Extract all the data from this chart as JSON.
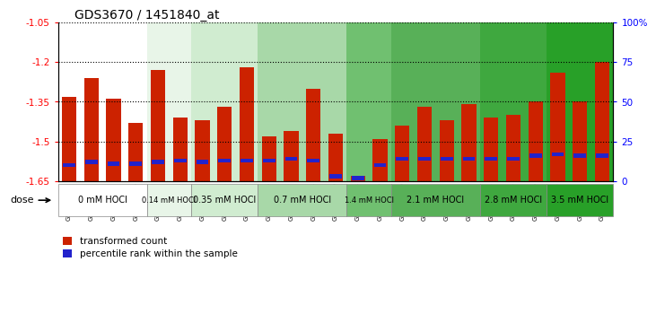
{
  "title": "GDS3670 / 1451840_at",
  "samples": [
    "GSM387601",
    "GSM387602",
    "GSM387605",
    "GSM387606",
    "GSM387645",
    "GSM387646",
    "GSM387647",
    "GSM387648",
    "GSM387649",
    "GSM387676",
    "GSM387677",
    "GSM387678",
    "GSM387679",
    "GSM387698",
    "GSM387699",
    "GSM387700",
    "GSM387701",
    "GSM387702",
    "GSM387703",
    "GSM387713",
    "GSM387714",
    "GSM387716",
    "GSM387750",
    "GSM387751",
    "GSM387752"
  ],
  "values": [
    -1.33,
    -1.26,
    -1.34,
    -1.43,
    -1.23,
    -1.41,
    -1.42,
    -1.37,
    -1.22,
    -1.48,
    -1.46,
    -1.3,
    -1.47,
    -1.63,
    -1.49,
    -1.44,
    -1.37,
    -1.42,
    -1.36,
    -1.41,
    -1.4,
    -1.35,
    -1.24,
    -1.35,
    -1.2
  ],
  "percentiles": [
    10,
    12,
    11,
    11,
    12,
    13,
    12,
    13,
    13,
    13,
    14,
    13,
    3,
    2,
    10,
    14,
    14,
    14,
    14,
    14,
    14,
    16,
    17,
    16,
    16
  ],
  "groups": [
    {
      "label": "0 mM HOCl",
      "start": 0,
      "end": 4,
      "bar_color": "#ffffff",
      "label_color": "#ffffff"
    },
    {
      "label": "0.14 mM HOCl",
      "start": 4,
      "end": 6,
      "bar_color": "#e0f0e0",
      "label_color": "#e0f0e0"
    },
    {
      "label": "0.35 mM HOCl",
      "start": 6,
      "end": 9,
      "bar_color": "#c8e8c8",
      "label_color": "#c8e8c8"
    },
    {
      "label": "0.7 mM HOCl",
      "start": 9,
      "end": 13,
      "bar_color": "#90d890",
      "label_color": "#90d890"
    },
    {
      "label": "1.4 mM HOCl",
      "start": 13,
      "end": 15,
      "bar_color": "#60c060",
      "label_color": "#60c060"
    },
    {
      "label": "2.1 mM HOCl",
      "start": 15,
      "end": 19,
      "bar_color": "#48b048",
      "label_color": "#48b048"
    },
    {
      "label": "2.8 mM HOCl",
      "start": 19,
      "end": 22,
      "bar_color": "#30a030",
      "label_color": "#30a030"
    },
    {
      "label": "3.5 mM HOCl",
      "start": 22,
      "end": 25,
      "bar_color": "#20a020",
      "label_color": "#20a020"
    }
  ],
  "ylim_left": [
    -1.65,
    -1.05
  ],
  "ylim_right": [
    0,
    100
  ],
  "bar_color": "#cc2200",
  "percentile_color": "#2222cc",
  "legend_red": "transformed count",
  "legend_blue": "percentile rank within the sample"
}
